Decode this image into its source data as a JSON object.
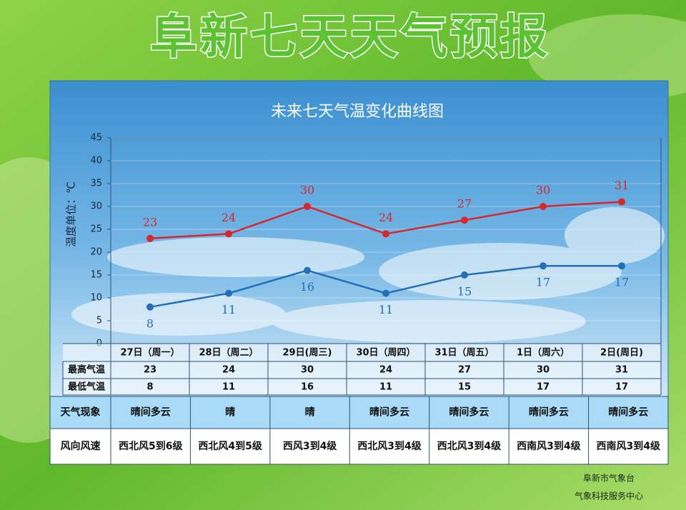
{
  "header": {
    "title": "阜新七天天气预报"
  },
  "chart_data": {
    "type": "line",
    "title": "未来七天气温变化曲线图",
    "y_label": "温度单位：℃",
    "categories": [
      "27日（周一）",
      "28日（周二）",
      "29日(周三)",
      "30日（周四）",
      "31日（周五）",
      "1日（周六）",
      "2日(周日)"
    ],
    "series": [
      {
        "name": "最高气温",
        "color": "#d7262c",
        "values": [
          23,
          24,
          30,
          24,
          27,
          30,
          31
        ]
      },
      {
        "name": "最低气温",
        "color": "#2370b6",
        "values": [
          8,
          11,
          16,
          11,
          15,
          17,
          17
        ]
      }
    ],
    "ylim": [
      0,
      45
    ],
    "yticks": [
      0,
      5,
      10,
      15,
      20,
      25,
      30,
      35,
      40,
      45
    ],
    "grid": true
  },
  "forecast_table": {
    "rows": [
      {
        "label": "天气现象",
        "cells": [
          "晴间多云",
          "晴",
          "晴",
          "晴间多云",
          "晴间多云",
          "晴间多云",
          "晴间多云"
        ]
      },
      {
        "label": "风向风速",
        "cells": [
          "西北风5到6级",
          "西北风4到5级",
          "西风3到4级",
          "西北风3到4级",
          "西北风3到4级",
          "西南风3到4级",
          "西南风3到4级"
        ]
      }
    ]
  },
  "footer": {
    "lines": [
      "阜新市气象台",
      "气象科技服务中心"
    ]
  }
}
